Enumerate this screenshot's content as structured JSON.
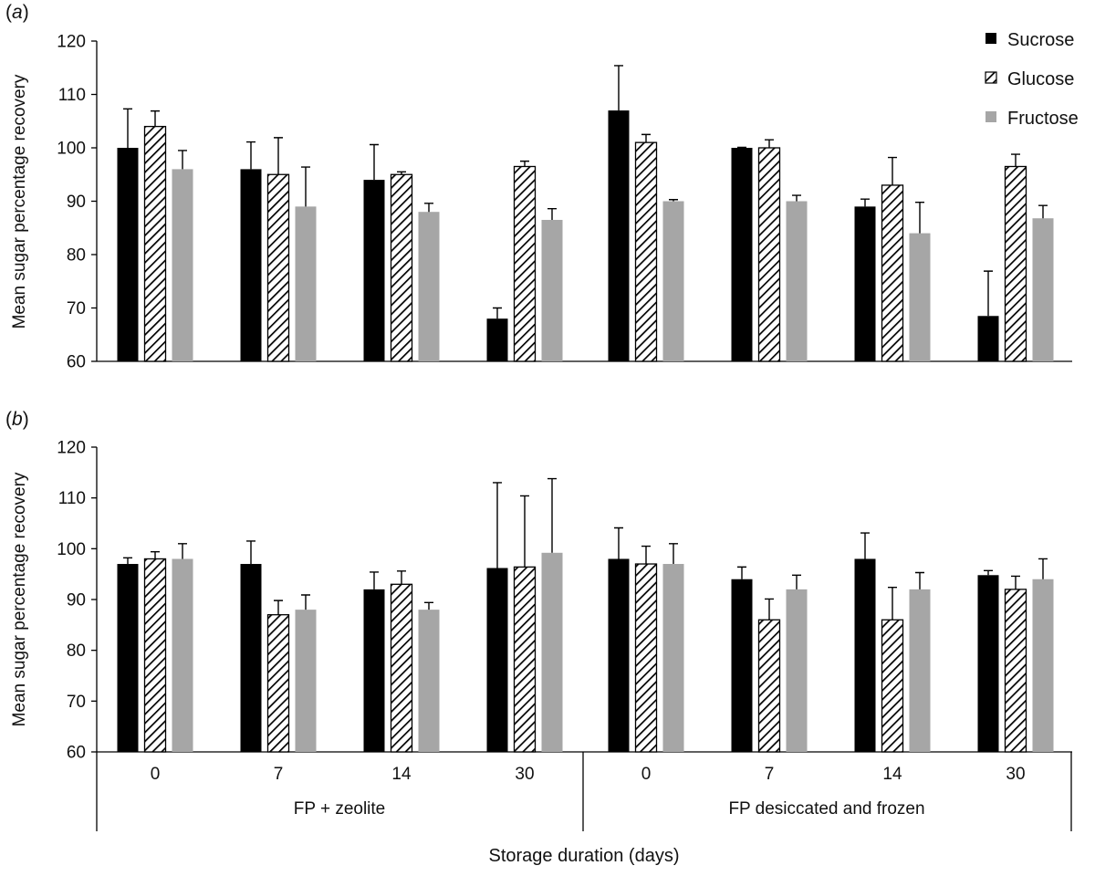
{
  "colors": {
    "sucrose": "#000000",
    "glucose_hatch_bg": "#ffffff",
    "glucose_hatch_line": "#000000",
    "fructose": "#a6a6a6"
  },
  "legend": {
    "position": "top-right of panel (a)",
    "items": [
      {
        "label": "Sucrose",
        "style": "solid-black"
      },
      {
        "label": "Glucose",
        "style": "hatched"
      },
      {
        "label": "Fructose",
        "style": "solid-grey"
      }
    ]
  },
  "x_axis": {
    "title": "Storage duration (days)",
    "groups": [
      {
        "label": "FP + zeolite",
        "ticks": [
          "0",
          "7",
          "14",
          "30"
        ]
      },
      {
        "label": "FP desiccated and frozen",
        "ticks": [
          "0",
          "7",
          "14",
          "30"
        ]
      }
    ]
  },
  "chart_data": [
    {
      "type": "bar",
      "panel_label": "(a)",
      "panel_letter": "a",
      "ylabel": "Mean sugar percentage recovery",
      "ylim": [
        60,
        120
      ],
      "yticks": [
        60,
        70,
        80,
        90,
        100,
        110,
        120
      ],
      "grid": false,
      "categories": [
        "0",
        "7",
        "14",
        "30",
        "0",
        "7",
        "14",
        "30"
      ],
      "series": [
        {
          "name": "Sucrose",
          "values": [
            100,
            96,
            94,
            68,
            107,
            100,
            89,
            68.5
          ],
          "errors": [
            7.3,
            5.1,
            6.6,
            2.0,
            8.4,
            0.1,
            1.4,
            8.4
          ]
        },
        {
          "name": "Glucose",
          "values": [
            104,
            95,
            95,
            96.5,
            101,
            100,
            93,
            96.5
          ],
          "errors": [
            2.9,
            6.9,
            0.5,
            1.0,
            1.5,
            1.5,
            5.2,
            2.3
          ]
        },
        {
          "name": "Fructose",
          "values": [
            96,
            89,
            88,
            86.5,
            90,
            90,
            84,
            86.8
          ],
          "errors": [
            3.5,
            7.4,
            1.6,
            2.1,
            0.3,
            1.1,
            5.8,
            2.4
          ]
        }
      ]
    },
    {
      "type": "bar",
      "panel_label": "(b)",
      "panel_letter": "b",
      "ylabel": "Mean sugar percentage recovery",
      "ylim": [
        60,
        120
      ],
      "yticks": [
        60,
        70,
        80,
        90,
        100,
        110,
        120
      ],
      "grid": false,
      "categories": [
        "0",
        "7",
        "14",
        "30",
        "0",
        "7",
        "14",
        "30"
      ],
      "series": [
        {
          "name": "Sucrose",
          "values": [
            97,
            97,
            92,
            96.2,
            98,
            94,
            98,
            94.8
          ],
          "errors": [
            1.2,
            4.5,
            3.4,
            16.8,
            6.1,
            2.4,
            5.1,
            0.9
          ]
        },
        {
          "name": "Glucose",
          "values": [
            98,
            87,
            93,
            96.4,
            97,
            86,
            86,
            92
          ],
          "errors": [
            1.4,
            2.8,
            2.6,
            14.0,
            3.5,
            4.1,
            6.4,
            2.6
          ]
        },
        {
          "name": "Fructose",
          "values": [
            98,
            88,
            88,
            99.2,
            97,
            92,
            92,
            94
          ],
          "errors": [
            3.0,
            2.9,
            1.4,
            14.6,
            4.0,
            2.8,
            3.3,
            4.0
          ]
        }
      ]
    }
  ]
}
